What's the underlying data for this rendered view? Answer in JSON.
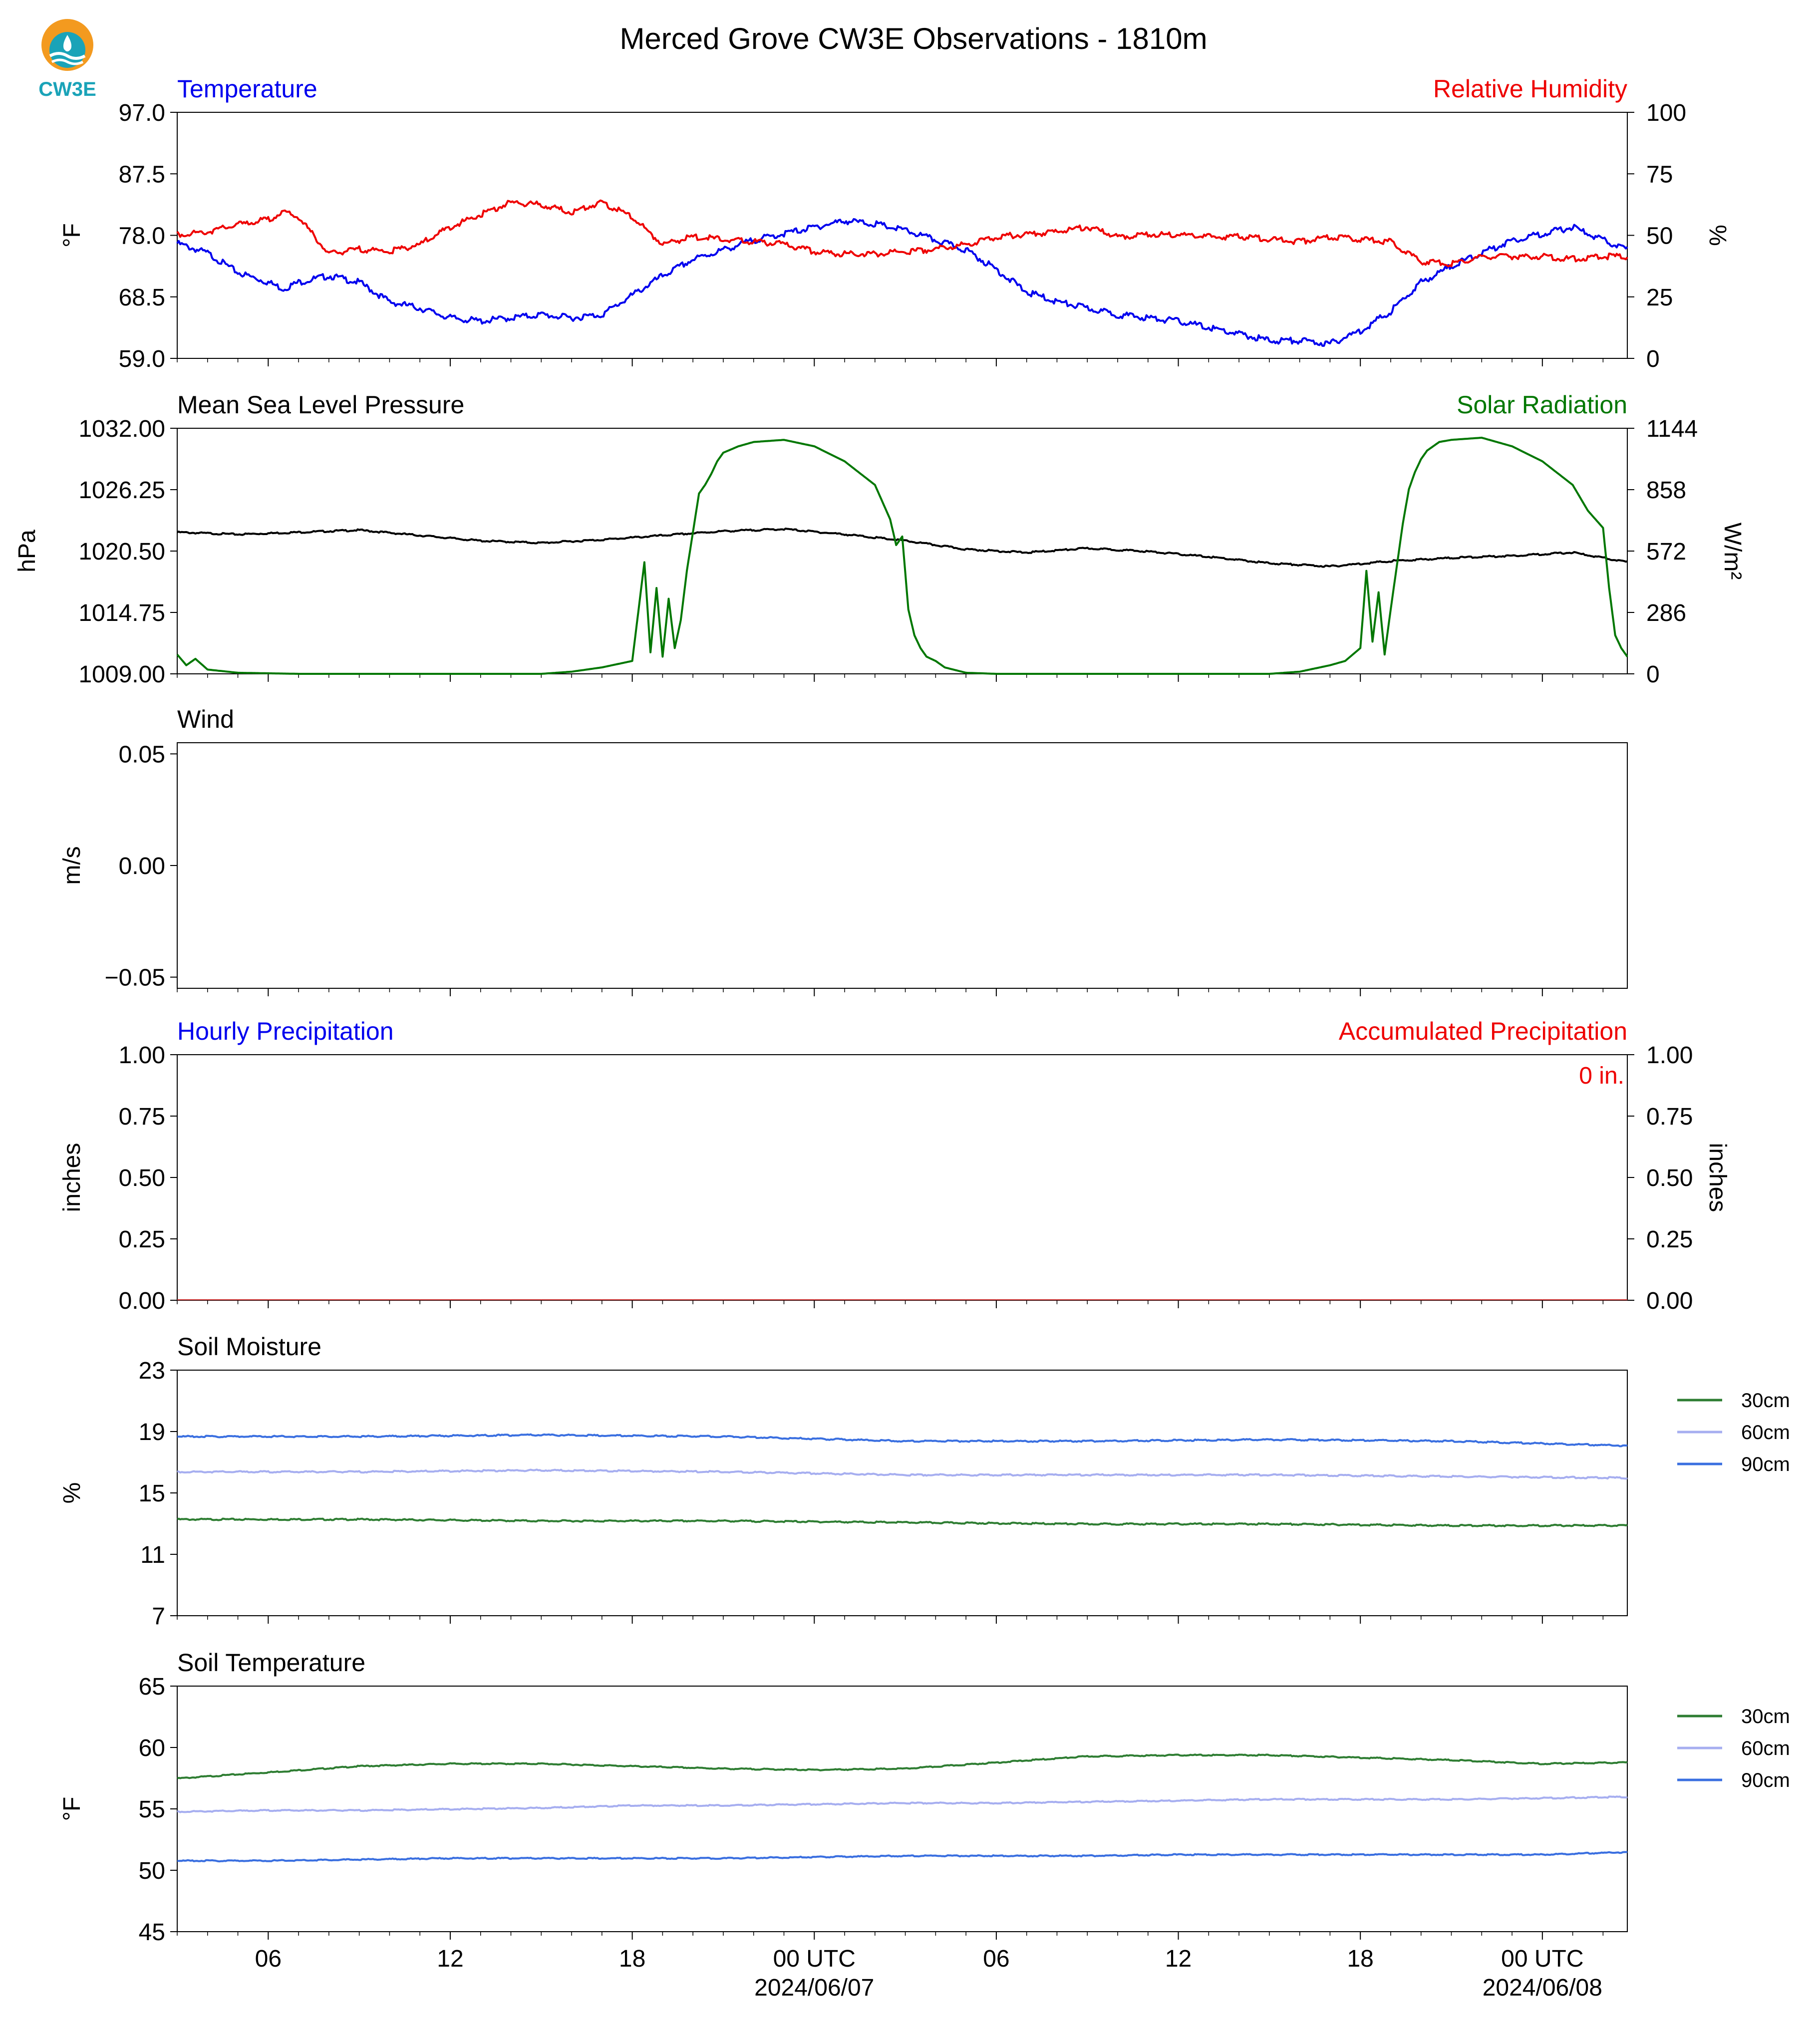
{
  "title": "Merced Grove CW3E Observations - 1810m",
  "logo_text": "CW3E",
  "colors": {
    "temperature": "#0000ee",
    "humidity": "#ee0000",
    "pressure": "#000000",
    "solar": "#007700",
    "soil_30": "#2e7d32",
    "soil_60": "#a6aef0",
    "soil_90": "#3a6fe0",
    "logo_orange": "#f39a1f",
    "logo_teal": "#1aa3b8"
  },
  "x_axis": {
    "tick_labels": [
      "06",
      "12",
      "18",
      "00 UTC",
      "06",
      "12",
      "18",
      "00 UTC"
    ],
    "date_labels": [
      "2024/06/07",
      "2024/06/08"
    ]
  },
  "chart_data": [
    {
      "type": "line",
      "title_left": "Temperature",
      "title_right": "Relative Humidity",
      "ylabel_left": "°F",
      "ylabel_right": "%",
      "ylim_left": [
        59.0,
        97.0
      ],
      "ylim_right": [
        0,
        100
      ],
      "yticks_left": [
        "59.0",
        "68.5",
        "78.0",
        "87.5",
        "97.0"
      ],
      "yticks_right": [
        "0",
        "25",
        "50",
        "75",
        "100"
      ],
      "x_hours": [
        0,
        1,
        2,
        3,
        3.5,
        4,
        5,
        6,
        7,
        8,
        9,
        10,
        11,
        12,
        13,
        14,
        15,
        16,
        17,
        18,
        19,
        20,
        21,
        22,
        23,
        24,
        25,
        26,
        27,
        28,
        29,
        30,
        31,
        32,
        33,
        34,
        35,
        36,
        37,
        38,
        39,
        40,
        41,
        42,
        43,
        44,
        45,
        46,
        47,
        47.8
      ],
      "series": [
        {
          "name": "Temperature",
          "axis": "left",
          "values": [
            77.0,
            75.5,
            72.5,
            71,
            70,
            71,
            72,
            71,
            68,
            67,
            65.5,
            65,
            65.5,
            66,
            65.5,
            66,
            69,
            72,
            74.5,
            76,
            77.5,
            78.5,
            79.5,
            80.5,
            80,
            79,
            77.5,
            76,
            73,
            69.5,
            68,
            67,
            66,
            65.5,
            65,
            64,
            63,
            62,
            62,
            61.5,
            63.5,
            66.5,
            71,
            73.5,
            75.5,
            77.5,
            78.5,
            79.5,
            77.5,
            76
          ]
        },
        {
          "name": "Relative Humidity",
          "axis": "right",
          "values": [
            51,
            52,
            55,
            57,
            60,
            58,
            43,
            45,
            44,
            47,
            54,
            59,
            64,
            63,
            60,
            64,
            58,
            47,
            50,
            49,
            48,
            47,
            44,
            43,
            43,
            44,
            45,
            47,
            50,
            51,
            52,
            54,
            50,
            51,
            51,
            50,
            50,
            49,
            48,
            50,
            49,
            48,
            40,
            39,
            42,
            42,
            42,
            41,
            42,
            42
          ]
        }
      ]
    },
    {
      "type": "line",
      "title_left": "Mean Sea Level Pressure",
      "title_right": "Solar Radiation",
      "ylabel_left": "hPa",
      "ylabel_right": "W/m²",
      "ylim_left": [
        1009.0,
        1032.0
      ],
      "ylim_right": [
        0,
        1144
      ],
      "yticks_left": [
        "1009.00",
        "1014.75",
        "1020.50",
        "1026.25",
        "1032.00"
      ],
      "yticks_right": [
        "0",
        "286",
        "572",
        "858",
        "1144"
      ],
      "series": [
        {
          "name": "Mean Sea Level Pressure",
          "axis": "left",
          "x_hours": [
            0,
            2,
            4,
            6,
            8,
            10,
            12,
            14,
            16,
            18,
            20,
            22,
            24,
            26,
            28,
            30,
            32,
            34,
            36,
            38,
            40,
            42,
            44,
            46,
            47.8
          ],
          "values": [
            1022.3,
            1022.1,
            1022.3,
            1022.5,
            1022.0,
            1021.5,
            1021.3,
            1021.6,
            1022.0,
            1022.4,
            1022.6,
            1022.1,
            1021.5,
            1020.7,
            1020.4,
            1020.8,
            1020.5,
            1020.0,
            1019.4,
            1019.1,
            1019.6,
            1019.9,
            1020.1,
            1020.4,
            1019.5
          ]
        },
        {
          "name": "Solar Radiation",
          "axis": "right",
          "x_hours": [
            0,
            0.3,
            0.6,
            1,
            2,
            4,
            8,
            12,
            13,
            14,
            15,
            15.4,
            15.6,
            15.8,
            16,
            16.2,
            16.4,
            16.6,
            16.8,
            17,
            17.2,
            17.4,
            17.6,
            17.8,
            18,
            18.5,
            19,
            20,
            21,
            22,
            23,
            23.5,
            23.7,
            23.9,
            24.1,
            24.3,
            24.5,
            24.7,
            25,
            25.3,
            26,
            27,
            28,
            32,
            36,
            37,
            38,
            38.5,
            39,
            39.2,
            39.4,
            39.6,
            39.8,
            40,
            40.2,
            40.4,
            40.6,
            40.8,
            41,
            41.2,
            41.4,
            41.6,
            42,
            43,
            44,
            45,
            46,
            46.5,
            47,
            47.2,
            47.4,
            47.6,
            47.8
          ],
          "values": [
            90,
            40,
            70,
            20,
            5,
            0,
            0,
            0,
            10,
            30,
            60,
            520,
            100,
            400,
            80,
            350,
            120,
            250,
            480,
            660,
            840,
            880,
            930,
            990,
            1030,
            1060,
            1080,
            1090,
            1060,
            990,
            880,
            720,
            600,
            640,
            300,
            180,
            120,
            80,
            60,
            30,
            5,
            0,
            0,
            0,
            0,
            10,
            40,
            60,
            120,
            480,
            150,
            380,
            90,
            300,
            500,
            700,
            860,
            940,
            1000,
            1040,
            1060,
            1080,
            1090,
            1100,
            1060,
            990,
            880,
            760,
            680,
            400,
            180,
            120,
            80
          ]
        }
      ]
    },
    {
      "type": "line",
      "title_left": "Wind",
      "ylabel_left": "m/s",
      "ylim_left": [
        -0.055,
        0.055
      ],
      "yticks_left": [
        "−0.05",
        "0.00",
        "0.05"
      ],
      "series": []
    },
    {
      "type": "bar",
      "title_left": "Hourly Precipitation",
      "title_right": "Accumulated Precipitation",
      "ylabel_left": "inches",
      "ylabel_right": "inches",
      "ylim_left": [
        0,
        1
      ],
      "ylim_right": [
        0,
        1
      ],
      "yticks_left": [
        "0.00",
        "0.25",
        "0.50",
        "0.75",
        "1.00"
      ],
      "yticks_right": [
        "0.00",
        "0.25",
        "0.50",
        "0.75",
        "1.00"
      ],
      "annotation": "0 in.",
      "series": [
        {
          "name": "Hourly Precipitation",
          "axis": "left",
          "values": [
            0
          ]
        },
        {
          "name": "Accumulated Precipitation",
          "axis": "right",
          "values": [
            0
          ]
        }
      ]
    },
    {
      "type": "line",
      "title_left": "Soil Moisture",
      "ylabel_left": "%",
      "ylim_left": [
        7,
        23
      ],
      "yticks_left": [
        "7",
        "11",
        "15",
        "19",
        "23"
      ],
      "legend": [
        "30cm",
        "60cm",
        "90cm"
      ],
      "x_hours": [
        0,
        6,
        12,
        18,
        24,
        30,
        36,
        42,
        47.8
      ],
      "series": [
        {
          "name": "30cm",
          "values": [
            13.3,
            13.3,
            13.2,
            13.2,
            13.1,
            13.0,
            13.0,
            12.9,
            12.9
          ]
        },
        {
          "name": "60cm",
          "values": [
            16.4,
            16.4,
            16.5,
            16.4,
            16.2,
            16.2,
            16.2,
            16.1,
            16.0
          ]
        },
        {
          "name": "90cm",
          "values": [
            18.7,
            18.7,
            18.8,
            18.7,
            18.4,
            18.4,
            18.5,
            18.4,
            18.1
          ]
        }
      ]
    },
    {
      "type": "line",
      "title_left": "Soil Temperature",
      "ylabel_left": "°F",
      "ylim_left": [
        45,
        65
      ],
      "yticks_left": [
        "45",
        "50",
        "55",
        "60",
        "65"
      ],
      "legend": [
        "30cm",
        "60cm",
        "90cm"
      ],
      "x_hours": [
        0,
        3,
        6,
        9,
        12,
        15,
        18,
        21,
        24,
        27,
        30,
        33,
        36,
        39,
        42,
        45,
        47.8
      ],
      "series": [
        {
          "name": "30cm",
          "values": [
            57.5,
            58.0,
            58.5,
            58.7,
            58.7,
            58.5,
            58.3,
            58.2,
            58.3,
            58.8,
            59.3,
            59.4,
            59.4,
            59.2,
            59.0,
            58.7,
            58.8
          ]
        },
        {
          "name": "60cm",
          "values": [
            54.8,
            54.9,
            54.9,
            55.0,
            55.1,
            55.3,
            55.3,
            55.4,
            55.5,
            55.5,
            55.6,
            55.7,
            55.8,
            55.8,
            55.8,
            55.9,
            56.0
          ]
        },
        {
          "name": "90cm",
          "values": [
            50.8,
            50.8,
            50.9,
            51.0,
            51.0,
            51.0,
            51.0,
            51.1,
            51.2,
            51.2,
            51.2,
            51.3,
            51.3,
            51.3,
            51.3,
            51.3,
            51.5
          ]
        }
      ]
    }
  ]
}
